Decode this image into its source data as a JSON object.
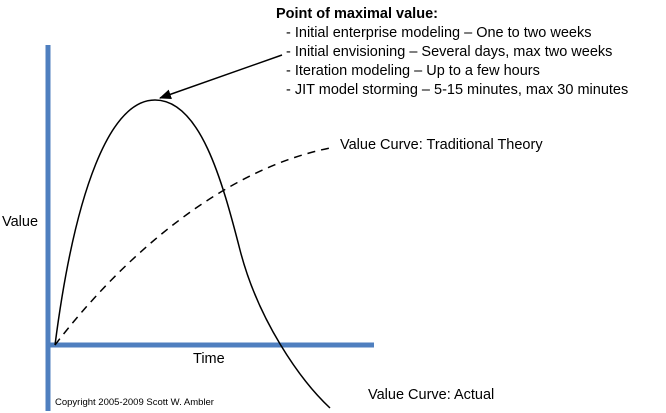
{
  "heading": "Point of maximal value:",
  "items": [
    "- Initial enterprise modeling – One to two weeks",
    "- Initial envisioning – Several days, max two weeks",
    "- Iteration modeling – Up to a few hours",
    "- JIT model storming – 5-15 minutes, max 30 minutes"
  ],
  "curves": {
    "traditional": "Value Curve: Traditional Theory",
    "actual": "Value Curve: Actual"
  },
  "axes": {
    "y": "Value",
    "x": "Time"
  },
  "copyright": "Copyright 2005-2009 Scott W. Ambler"
}
